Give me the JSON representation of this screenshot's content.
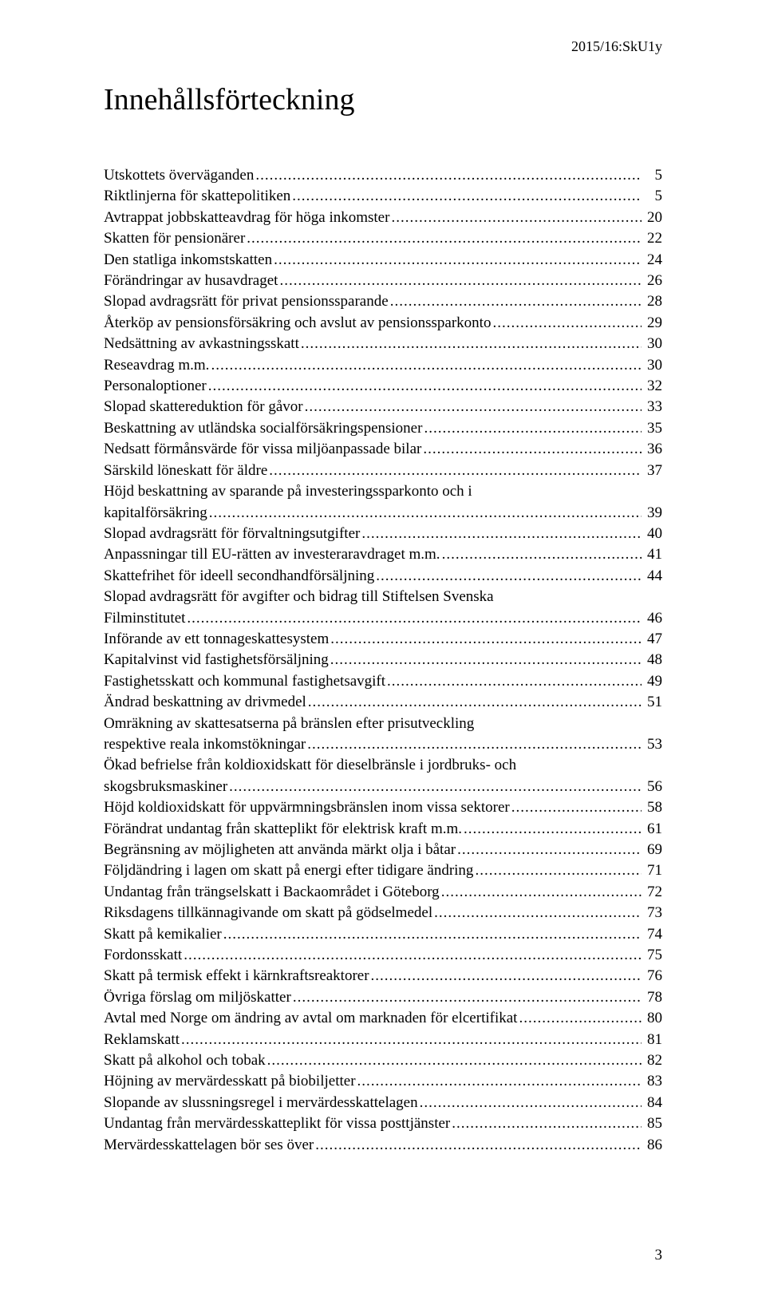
{
  "header": "2015/16:SkU1y",
  "title": "Innehållsförteckning",
  "page_number": "3",
  "toc": [
    {
      "label": "Utskottets överväganden",
      "page": "5"
    },
    {
      "label": "Riktlinjerna för skattepolitiken",
      "page": "5"
    },
    {
      "label": "Avtrappat jobbskatteavdrag för höga inkomster",
      "page": "20"
    },
    {
      "label": "Skatten för pensionärer",
      "page": "22"
    },
    {
      "label": "Den statliga inkomstskatten",
      "page": "24"
    },
    {
      "label": "Förändringar av husavdraget",
      "page": "26"
    },
    {
      "label": "Slopad avdragsrätt för privat pensionssparande",
      "page": "28"
    },
    {
      "label": "Återköp av pensionsförsäkring och avslut av pensionssparkonto",
      "page": "29"
    },
    {
      "label": "Nedsättning av avkastningsskatt",
      "page": "30"
    },
    {
      "label": "Reseavdrag m.m.",
      "page": "30"
    },
    {
      "label": "Personaloptioner",
      "page": "32"
    },
    {
      "label": "Slopad skattereduktion för gåvor",
      "page": "33"
    },
    {
      "label": "Beskattning av utländska socialförsäkringspensioner",
      "page": "35"
    },
    {
      "label": "Nedsatt förmånsvärde för vissa miljöanpassade bilar",
      "page": "36"
    },
    {
      "label": "Särskild löneskatt för äldre",
      "page": "37"
    },
    {
      "multi": true,
      "line1": "Höjd beskattning av sparande på investeringssparkonto och i",
      "line2": "kapitalförsäkring",
      "page": "39"
    },
    {
      "label": "Slopad avdragsrätt för förvaltningsutgifter",
      "page": "40"
    },
    {
      "label": "Anpassningar till EU-rätten av investeraravdraget m.m.",
      "page": "41"
    },
    {
      "label": "Skattefrihet för ideell secondhandförsäljning",
      "page": "44"
    },
    {
      "multi": true,
      "line1": "Slopad avdragsrätt för avgifter och bidrag till Stiftelsen Svenska",
      "line2": "Filminstitutet",
      "page": "46"
    },
    {
      "label": "Införande av ett tonnageskattesystem",
      "page": "47"
    },
    {
      "label": "Kapitalvinst vid fastighetsförsäljning",
      "page": "48"
    },
    {
      "label": "Fastighetsskatt och kommunal fastighetsavgift",
      "page": "49"
    },
    {
      "label": "Ändrad beskattning av drivmedel",
      "page": "51"
    },
    {
      "multi": true,
      "line1": "Omräkning av skattesatserna på bränslen efter prisutveckling",
      "line2": "respektive reala inkomstökningar",
      "page": "53"
    },
    {
      "multi": true,
      "line1": "Ökad befrielse från koldioxidskatt för dieselbränsle i jordbruks- och",
      "line2": "skogsbruksmaskiner",
      "page": "56"
    },
    {
      "label": "Höjd koldioxidskatt för uppvärmningsbränslen inom vissa sektorer",
      "page": "58"
    },
    {
      "label": "Förändrat undantag från skatteplikt för elektrisk kraft m.m.",
      "page": "61"
    },
    {
      "label": "Begränsning av möjligheten att använda märkt olja i båtar",
      "page": "69"
    },
    {
      "label": "Följdändring i lagen om skatt på energi efter tidigare ändring",
      "page": "71"
    },
    {
      "label": "Undantag från trängselskatt i Backaområdet i Göteborg",
      "page": "72"
    },
    {
      "label": "Riksdagens tillkännagivande om skatt på gödselmedel",
      "page": "73"
    },
    {
      "label": "Skatt på kemikalier",
      "page": "74"
    },
    {
      "label": "Fordonsskatt",
      "page": "75"
    },
    {
      "label": "Skatt på termisk effekt i kärnkraftsreaktorer",
      "page": "76"
    },
    {
      "label": "Övriga förslag om miljöskatter",
      "page": "78"
    },
    {
      "label": "Avtal med Norge om ändring av avtal om marknaden för elcertifikat",
      "page": "80"
    },
    {
      "label": "Reklamskatt",
      "page": "81"
    },
    {
      "label": "Skatt på alkohol och tobak",
      "page": "82"
    },
    {
      "label": "Höjning av mervärdesskatt på biobiljetter",
      "page": "83"
    },
    {
      "label": "Slopande av slussningsregel i mervärdesskattelagen",
      "page": "84"
    },
    {
      "label": "Undantag från mervärdesskatteplikt för vissa posttjänster",
      "page": "85"
    },
    {
      "label": "Mervärdesskattelagen bör ses över",
      "page": "86"
    }
  ]
}
